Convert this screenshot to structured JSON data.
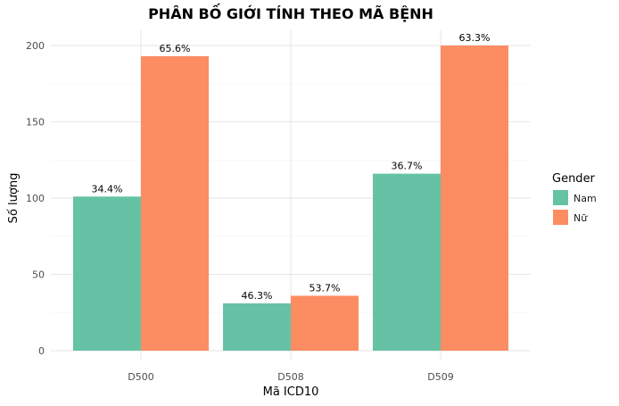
{
  "chart_data": {
    "type": "bar",
    "title": "PHÂN BỐ GIỚI TÍNH THEO MÃ BỆNH",
    "xlabel": "Mã ICD10",
    "ylabel": "Số lượng",
    "categories": [
      "D500",
      "D508",
      "D509"
    ],
    "series": [
      {
        "name": "Nam",
        "color": "#66c2a5",
        "values": [
          101,
          31,
          116
        ],
        "labels": [
          "34.4%",
          "46.3%",
          "36.7%"
        ]
      },
      {
        "name": "Nữ",
        "color": "#fc8d62",
        "values": [
          193,
          36,
          200
        ],
        "labels": [
          "65.6%",
          "53.7%",
          "63.3%"
        ]
      }
    ],
    "ylim": [
      0,
      210
    ],
    "yticks": [
      0,
      50,
      100,
      150,
      200
    ],
    "grid": true,
    "legend": {
      "title": "Gender",
      "position": "right"
    }
  }
}
